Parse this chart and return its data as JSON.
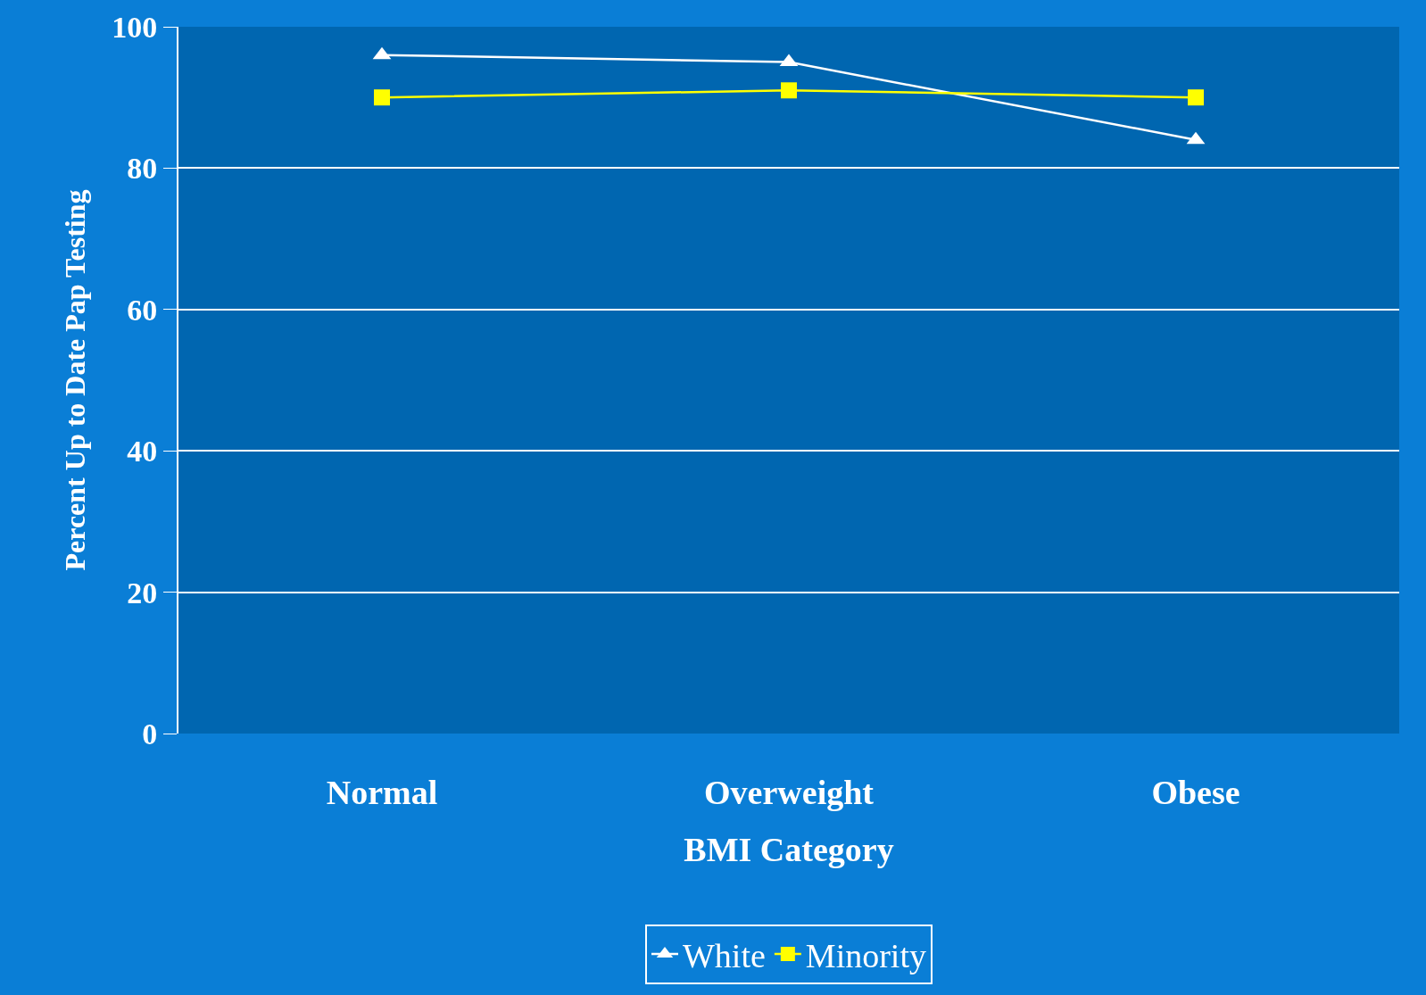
{
  "chart_data": {
    "type": "line",
    "xlabel": "BMI Category",
    "ylabel": "Percent Up to Date Pap Testing",
    "categories": [
      "Normal",
      "Overweight",
      "Obese"
    ],
    "series": [
      {
        "name": "White",
        "color": "#ffffff",
        "values": [
          96,
          95,
          84
        ],
        "marker": "triangle"
      },
      {
        "name": "Minority",
        "color": "#ffff00",
        "values": [
          90,
          91,
          90
        ],
        "marker": "square"
      }
    ],
    "ylim": [
      0,
      100
    ],
    "yticks": [
      0,
      20,
      40,
      60,
      80,
      100
    ],
    "grid": "y",
    "legend": "bottom",
    "line_style": "solid"
  }
}
